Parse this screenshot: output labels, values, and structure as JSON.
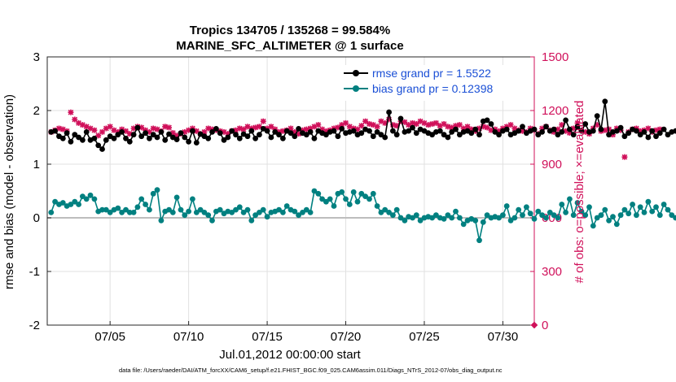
{
  "chart_data": {
    "type": "line",
    "title_line1": "Tropics 134705 / 135268 = 99.584%",
    "title_line2": "MARINE_SFC_ALTIMETER @ 1 surface",
    "xlabel": "Jul.01,2012 00:00:00 start",
    "ylabel_left": "rmse and bias (model - observation)",
    "ylabel_right": "# of obs: o=possible; ×=evaluated",
    "footnote": "data file: /Users/raeder/DAI/ATM_forcXX/CAM6_setup/f.e21.FHIST_BGC.f09_025.CAM6assim.011/Diags_NTrS_2012-07/obs_diag_output.nc",
    "x_range": [
      1.0,
      32.0
    ],
    "x_ticks": [
      5,
      10,
      15,
      20,
      25,
      30
    ],
    "x_tick_labels": [
      "07/05",
      "07/10",
      "07/15",
      "07/20",
      "07/25",
      "07/30"
    ],
    "y_left_range": [
      -2,
      3
    ],
    "y_left_ticks": [
      -2,
      -1,
      0,
      1,
      2,
      3
    ],
    "y_right_range": [
      0,
      1500
    ],
    "y_right_ticks": [
      0,
      300,
      600,
      900,
      1200,
      1500
    ],
    "grid": true,
    "legend_position": "top-right",
    "colors": {
      "rmse": "#000000",
      "bias": "#008080",
      "counts": "#d0105a",
      "zero_line": "#bdbdbd",
      "grid": "#e1e1e1"
    },
    "series": [
      {
        "name": "rmse",
        "legend": "rmse grand pr = 1.5522",
        "axis": "left",
        "x_start": 1.25,
        "x_step": 0.25,
        "values": [
          1.6,
          1.62,
          1.52,
          1.48,
          1.58,
          1.42,
          1.55,
          1.5,
          1.45,
          1.6,
          1.45,
          1.48,
          1.35,
          1.28,
          1.45,
          1.52,
          1.48,
          1.55,
          1.6,
          1.48,
          1.42,
          1.55,
          1.68,
          1.52,
          1.58,
          1.48,
          1.55,
          1.5,
          1.6,
          1.45,
          1.56,
          1.5,
          1.46,
          1.58,
          1.5,
          1.42,
          1.62,
          1.4,
          1.56,
          1.52,
          1.48,
          1.6,
          1.66,
          1.58,
          1.45,
          1.5,
          1.62,
          1.55,
          1.48,
          1.56,
          1.52,
          1.62,
          1.48,
          1.55,
          1.66,
          1.62,
          1.5,
          1.6,
          1.55,
          1.48,
          1.62,
          1.58,
          1.52,
          1.66,
          1.58,
          1.55,
          1.6,
          1.48,
          1.62,
          1.58,
          1.55,
          1.6,
          1.62,
          1.52,
          1.66,
          1.58,
          1.6,
          1.62,
          1.55,
          1.58,
          1.65,
          1.62,
          1.52,
          1.6,
          1.55,
          1.5,
          1.97,
          1.62,
          1.55,
          1.85,
          1.6,
          1.62,
          1.68,
          1.58,
          1.65,
          1.62,
          1.58,
          1.55,
          1.6,
          1.62,
          1.55,
          1.5,
          1.6,
          1.65,
          1.55,
          1.6,
          1.62,
          1.58,
          1.65,
          1.55,
          1.8,
          1.82,
          1.75,
          1.6,
          1.55,
          1.62,
          1.65,
          1.55,
          1.58,
          1.62,
          1.7,
          1.58,
          1.62,
          1.65,
          1.55,
          1.6,
          1.7,
          1.62,
          1.65,
          1.55,
          1.6,
          1.82,
          1.65,
          1.55,
          1.7,
          1.62,
          1.75,
          1.6,
          1.62,
          1.9,
          1.65,
          2.17,
          1.55,
          1.6,
          1.62,
          1.68,
          1.52,
          1.58,
          1.65,
          1.62,
          1.55,
          1.6,
          1.5,
          1.62,
          1.52,
          1.58,
          1.65,
          1.55,
          1.6,
          1.62,
          1.58,
          1.66,
          1.55,
          1.5,
          1.45,
          1.6,
          1.48,
          1.55,
          1.6,
          1.38,
          1.48,
          1.55
        ]
      },
      {
        "name": "bias",
        "legend": "bias grand pr = 0.12398",
        "axis": "left",
        "x_start": 1.25,
        "x_step": 0.25,
        "values": [
          0.1,
          0.3,
          0.25,
          0.28,
          0.22,
          0.25,
          0.3,
          0.25,
          0.4,
          0.35,
          0.42,
          0.35,
          0.12,
          0.15,
          0.15,
          0.1,
          0.15,
          0.18,
          0.1,
          0.15,
          0.1,
          0.1,
          0.2,
          0.35,
          0.25,
          0.15,
          0.45,
          0.52,
          -0.05,
          0.12,
          0.15,
          0.1,
          0.38,
          0.15,
          0.05,
          0.12,
          0.35,
          0.1,
          0.15,
          0.1,
          0.05,
          -0.05,
          0.12,
          0.15,
          0.08,
          0.12,
          0.1,
          0.15,
          0.2,
          0.1,
          0.15,
          -0.05,
          0.05,
          0.1,
          0.15,
          0.02,
          0.1,
          0.12,
          0.15,
          0.1,
          0.22,
          0.15,
          0.12,
          0.05,
          0.1,
          0.15,
          0.1,
          0.5,
          0.45,
          0.35,
          0.3,
          0.35,
          0.22,
          0.45,
          0.48,
          0.35,
          0.25,
          0.48,
          0.3,
          0.45,
          0.4,
          0.35,
          0.45,
          0.22,
          0.1,
          0.15,
          0.1,
          0.05,
          0.15,
          0.0,
          -0.05,
          0.02,
          0.0,
          0.05,
          -0.05,
          0.0,
          0.02,
          0.0,
          0.05,
          0.0,
          -0.02,
          0.05,
          0.0,
          0.12,
          0.0,
          -0.12,
          -0.05,
          -0.02,
          -0.05,
          -0.42,
          -0.08,
          0.05,
          0.0,
          0.02,
          0.0,
          0.05,
          0.22,
          -0.05,
          0.0,
          0.15,
          0.05,
          0.2,
          0.08,
          -0.02,
          0.12,
          0.05,
          0.0,
          0.1,
          0.05,
          0.0,
          0.25,
          0.1,
          0.35,
          0.05,
          0.28,
          0.12,
          0.05,
          0.2,
          -0.15,
          0.0,
          0.05,
          0.15,
          -0.05,
          0.02,
          -0.12,
          0.05,
          0.15,
          0.08,
          0.25,
          0.05,
          0.2,
          0.1,
          0.3,
          0.12,
          0.2,
          0.05,
          0.25,
          0.15,
          0.05,
          0.0,
          0.1,
          0.3,
          0.2,
          0.05,
          0.1,
          0.15,
          0.05,
          0.1,
          0.0,
          0.08,
          0.02,
          0.0,
          0.1,
          0.15,
          0.0,
          0.05,
          0.08,
          0.12,
          0.05,
          0.0,
          0.1,
          0.25,
          0.35,
          0.2,
          0.1,
          0.15,
          0.05,
          0.02,
          0.0,
          0.05,
          0.15,
          0.0,
          0.02,
          0.05,
          0.12,
          0.18,
          0.08,
          0.05,
          0.12,
          0.0,
          0.05,
          0.0,
          0.05,
          0.02,
          0.0
        ]
      },
      {
        "name": "obs_possible",
        "legend": "possible",
        "axis": "right",
        "x_start": 1.25,
        "x_step": 0.25,
        "values": [
          1080,
          1090,
          1100,
          1095,
          1085,
          1190,
          1150,
          1130,
          1120,
          1110,
          1100,
          1090,
          1060,
          1080,
          1100,
          1110,
          1090,
          1080,
          1095,
          1085,
          1070,
          1100,
          1110,
          1105,
          1090,
          1080,
          1100,
          1095,
          1085,
          1110,
          1105,
          1075,
          1060,
          1070,
          1080,
          1090,
          1100,
          1085,
          1070,
          1080,
          1100,
          1095,
          1090,
          1085,
          1080,
          1070,
          1085,
          1090,
          1100,
          1095,
          1110,
          1100,
          1105,
          1110,
          1140,
          1100,
          1110,
          1095,
          1080,
          1085,
          1090,
          1100,
          1080,
          1070,
          1090,
          1095,
          1100,
          1110,
          1120,
          1095,
          1085,
          1090,
          1100,
          1105,
          1120,
          1130,
          1110,
          1100,
          1095,
          1115,
          1140,
          1125,
          1120,
          1110,
          1140,
          1130,
          1150,
          1120,
          1115,
          1140,
          1135,
          1120,
          1130,
          1125,
          1140,
          1130,
          1120,
          1125,
          1130,
          1115,
          1125,
          1110,
          1105,
          1115,
          1120,
          1100,
          1110,
          1095,
          1085,
          1100,
          1110,
          1105,
          1090,
          1095,
          1085,
          1100,
          1110,
          1120,
          1100,
          1090,
          1085,
          1080,
          1100,
          1090,
          1070,
          1100,
          1110,
          1090,
          1080,
          1095,
          1120,
          1085,
          1075,
          1100,
          1130,
          1090,
          1080,
          1070,
          1100,
          1120,
          1085,
          1090,
          1095,
          1065,
          1100,
          1090,
          940,
          1080,
          1095,
          1100,
          1085,
          1090,
          1100,
          1080,
          1090,
          1095
        ]
      },
      {
        "name": "obs_evaluated",
        "legend": "evaluated",
        "axis": "right",
        "note": "evaluated counts are drawn on top of the possible counts (nearly identical values)"
      }
    ],
    "right_axis_marker": {
      "x": 32.0,
      "value": 0
    }
  }
}
